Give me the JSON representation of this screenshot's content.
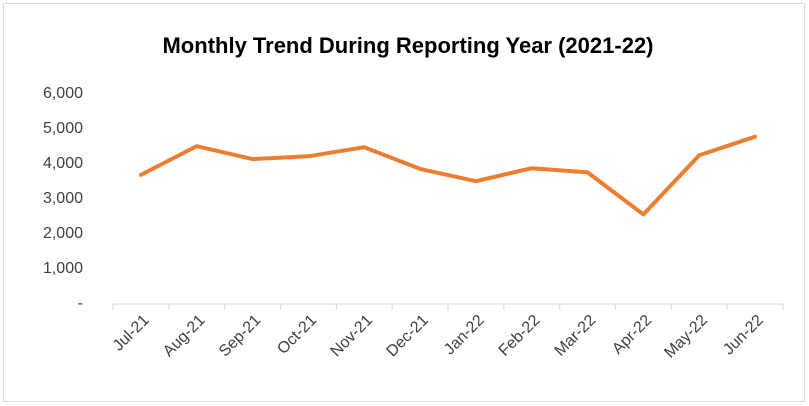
{
  "chart_data": {
    "type": "line",
    "title": "Monthly Trend During Reporting Year (2021-22)",
    "categories": [
      "Jul-21",
      "Aug-21",
      "Sep-21",
      "Oct-21",
      "Nov-21",
      "Dec-21",
      "Jan-22",
      "Feb-22",
      "Mar-22",
      "Apr-22",
      "May-22",
      "Jun-22"
    ],
    "series": [
      {
        "color": "#ed7d31",
        "values": [
          3690,
          4510,
          4140,
          4220,
          4480,
          3860,
          3510,
          3880,
          3760,
          2560,
          4250,
          4780
        ]
      }
    ],
    "ylim": [
      0,
      6000
    ],
    "yticks": [
      {
        "value": 0,
        "label": "-"
      },
      {
        "value": 1000,
        "label": "1,000"
      },
      {
        "value": 2000,
        "label": "2,000"
      },
      {
        "value": 3000,
        "label": "3,000"
      },
      {
        "value": 4000,
        "label": "4,000"
      },
      {
        "value": 5000,
        "label": "5,000"
      },
      {
        "value": 6000,
        "label": "6,000"
      }
    ],
    "grid": false
  }
}
